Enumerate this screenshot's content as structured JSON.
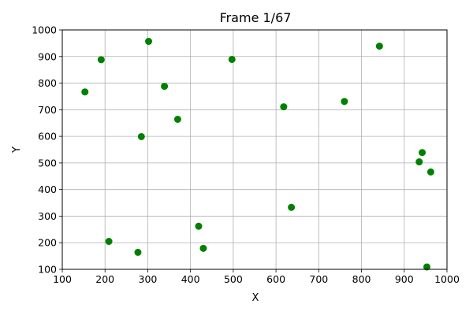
{
  "chart_data": {
    "type": "scatter",
    "title": "Frame 1/67",
    "xlabel": "X",
    "ylabel": "Y",
    "xlim": [
      100,
      1000
    ],
    "ylim": [
      100,
      1000
    ],
    "xticks": [
      100,
      200,
      300,
      400,
      500,
      600,
      700,
      800,
      900,
      1000
    ],
    "yticks": [
      100,
      200,
      300,
      400,
      500,
      600,
      700,
      800,
      900,
      1000
    ],
    "grid": true,
    "marker_color": "#008000",
    "points": [
      {
        "x": 153,
        "y": 767
      },
      {
        "x": 191,
        "y": 888
      },
      {
        "x": 302,
        "y": 957
      },
      {
        "x": 339,
        "y": 788
      },
      {
        "x": 497,
        "y": 889
      },
      {
        "x": 842,
        "y": 939
      },
      {
        "x": 370,
        "y": 664
      },
      {
        "x": 285,
        "y": 599
      },
      {
        "x": 618,
        "y": 711
      },
      {
        "x": 760,
        "y": 731
      },
      {
        "x": 942,
        "y": 539
      },
      {
        "x": 935,
        "y": 504
      },
      {
        "x": 962,
        "y": 466
      },
      {
        "x": 636,
        "y": 333
      },
      {
        "x": 419,
        "y": 262
      },
      {
        "x": 430,
        "y": 179
      },
      {
        "x": 209,
        "y": 205
      },
      {
        "x": 277,
        "y": 164
      },
      {
        "x": 953,
        "y": 109
      }
    ]
  }
}
